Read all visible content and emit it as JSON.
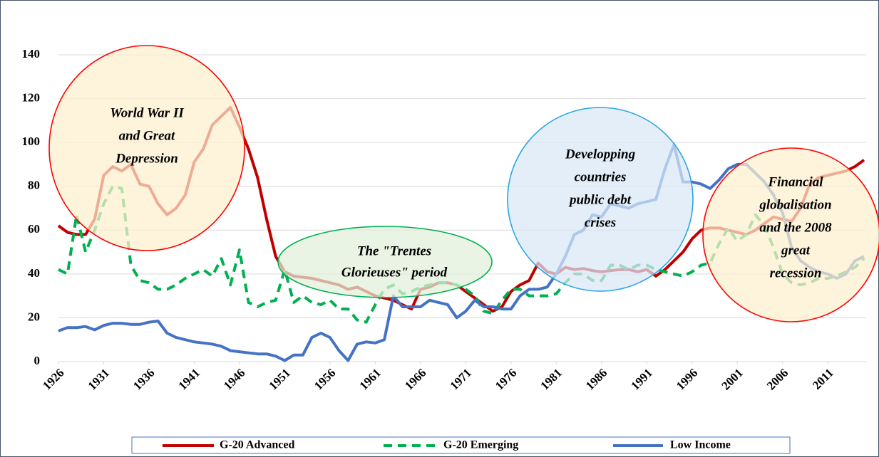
{
  "chart_data": {
    "type": "line",
    "x": [
      1926,
      1927,
      1928,
      1929,
      1930,
      1931,
      1932,
      1933,
      1934,
      1935,
      1936,
      1937,
      1938,
      1939,
      1940,
      1941,
      1942,
      1943,
      1944,
      1945,
      1946,
      1947,
      1948,
      1949,
      1950,
      1951,
      1952,
      1953,
      1954,
      1955,
      1956,
      1957,
      1958,
      1959,
      1960,
      1961,
      1962,
      1963,
      1964,
      1965,
      1966,
      1967,
      1968,
      1969,
      1970,
      1971,
      1972,
      1973,
      1974,
      1975,
      1976,
      1977,
      1978,
      1979,
      1980,
      1981,
      1982,
      1983,
      1984,
      1985,
      1986,
      1987,
      1988,
      1989,
      1990,
      1991,
      1992,
      1993,
      1994,
      1995,
      1996,
      1997,
      1998,
      1999,
      2000,
      2001,
      2002,
      2003,
      2004,
      2005,
      2006,
      2007,
      2008,
      2009,
      2010,
      2011,
      2012,
      2013,
      2014,
      2015
    ],
    "series": [
      {
        "name": "G-20 Advanced",
        "color": "#c00000",
        "dashed": false,
        "values": [
          62,
          59,
          58,
          58,
          65,
          85,
          89,
          87,
          90,
          81,
          80,
          72,
          67,
          70,
          76,
          91,
          97,
          108,
          112,
          116,
          107,
          97,
          84,
          65,
          48,
          41,
          39,
          38.5,
          38,
          37,
          36,
          35,
          33,
          34,
          32,
          30,
          29,
          28,
          26,
          24,
          33,
          34,
          36,
          36,
          35,
          32,
          29,
          26,
          23,
          25,
          32,
          35,
          37,
          45,
          41,
          40,
          43,
          42,
          42.5,
          41.5,
          41,
          41.5,
          42,
          42,
          41,
          42,
          39,
          42,
          46,
          50,
          56,
          60,
          61,
          61,
          60,
          59,
          58,
          60,
          63,
          66,
          65,
          64,
          70,
          81,
          84,
          85,
          86,
          87,
          89,
          92
        ]
      },
      {
        "name": "G-20 Emerging",
        "color": "#00b050",
        "dashed": true,
        "values": [
          42,
          40,
          67,
          50,
          60,
          72,
          80,
          79,
          44,
          37,
          36,
          33,
          33,
          35,
          38,
          40,
          42,
          39,
          47,
          35,
          51,
          27,
          25,
          27,
          28,
          42,
          27,
          30,
          27,
          26,
          28,
          24,
          24,
          19,
          18,
          26,
          33,
          35,
          31,
          32,
          34,
          35,
          36,
          36,
          35,
          33,
          30,
          23,
          22,
          28,
          33,
          33,
          30,
          30,
          30,
          31,
          36,
          40,
          40,
          37,
          37,
          44,
          44,
          42,
          44,
          44,
          42,
          41,
          40,
          39,
          41,
          44,
          45,
          54,
          61,
          55,
          58,
          67,
          62,
          52,
          40,
          36,
          35,
          36,
          38,
          38,
          39,
          41,
          43,
          47
        ]
      },
      {
        "name": "Low Income",
        "color": "#4472c4",
        "dashed": false,
        "values": [
          14,
          15.5,
          15.5,
          16,
          14.5,
          16.5,
          17.5,
          17.5,
          17,
          17,
          18,
          18.5,
          13,
          11,
          10,
          9,
          8.5,
          8,
          7,
          5,
          4.5,
          4,
          3.5,
          3.5,
          2.5,
          0.5,
          3,
          3,
          11,
          13,
          11,
          5,
          0.5,
          8,
          9,
          8.5,
          10,
          30,
          25,
          25,
          25,
          28,
          27,
          26,
          20,
          23,
          28,
          25,
          25,
          24,
          24,
          30,
          33,
          33,
          34,
          40,
          48,
          58,
          60,
          67,
          66,
          72,
          71,
          70,
          72,
          73,
          74,
          88,
          99,
          82,
          82,
          81,
          79,
          83,
          88,
          90,
          90,
          86,
          82,
          76,
          68,
          52,
          46,
          43,
          41,
          40,
          38,
          40,
          46,
          48
        ]
      }
    ],
    "xlim": [
      1926,
      2015
    ],
    "xticks": [
      1926,
      1931,
      1936,
      1941,
      1946,
      1951,
      1956,
      1961,
      1966,
      1971,
      1976,
      1981,
      1986,
      1991,
      1996,
      2001,
      2006,
      2011
    ],
    "ylim": [
      0,
      140
    ],
    "yticks": [
      0,
      20,
      40,
      60,
      80,
      100,
      120,
      140
    ],
    "grid": true,
    "legend": "bottom",
    "annotations": [
      {
        "lines": [
          "World War II",
          "and Great",
          "Depression"
        ],
        "color": "#ff0000"
      },
      {
        "lines": [
          "The \"Trentes",
          "Glorieuses\" period"
        ],
        "color": "#00b050"
      },
      {
        "lines": [
          "Developping",
          "countries",
          "public debt",
          "crises"
        ],
        "color": "#29a6e0"
      },
      {
        "lines": [
          "Financial",
          "globalisation",
          "and the 2008",
          "great",
          "recession"
        ],
        "color": "#ff0000"
      }
    ]
  }
}
